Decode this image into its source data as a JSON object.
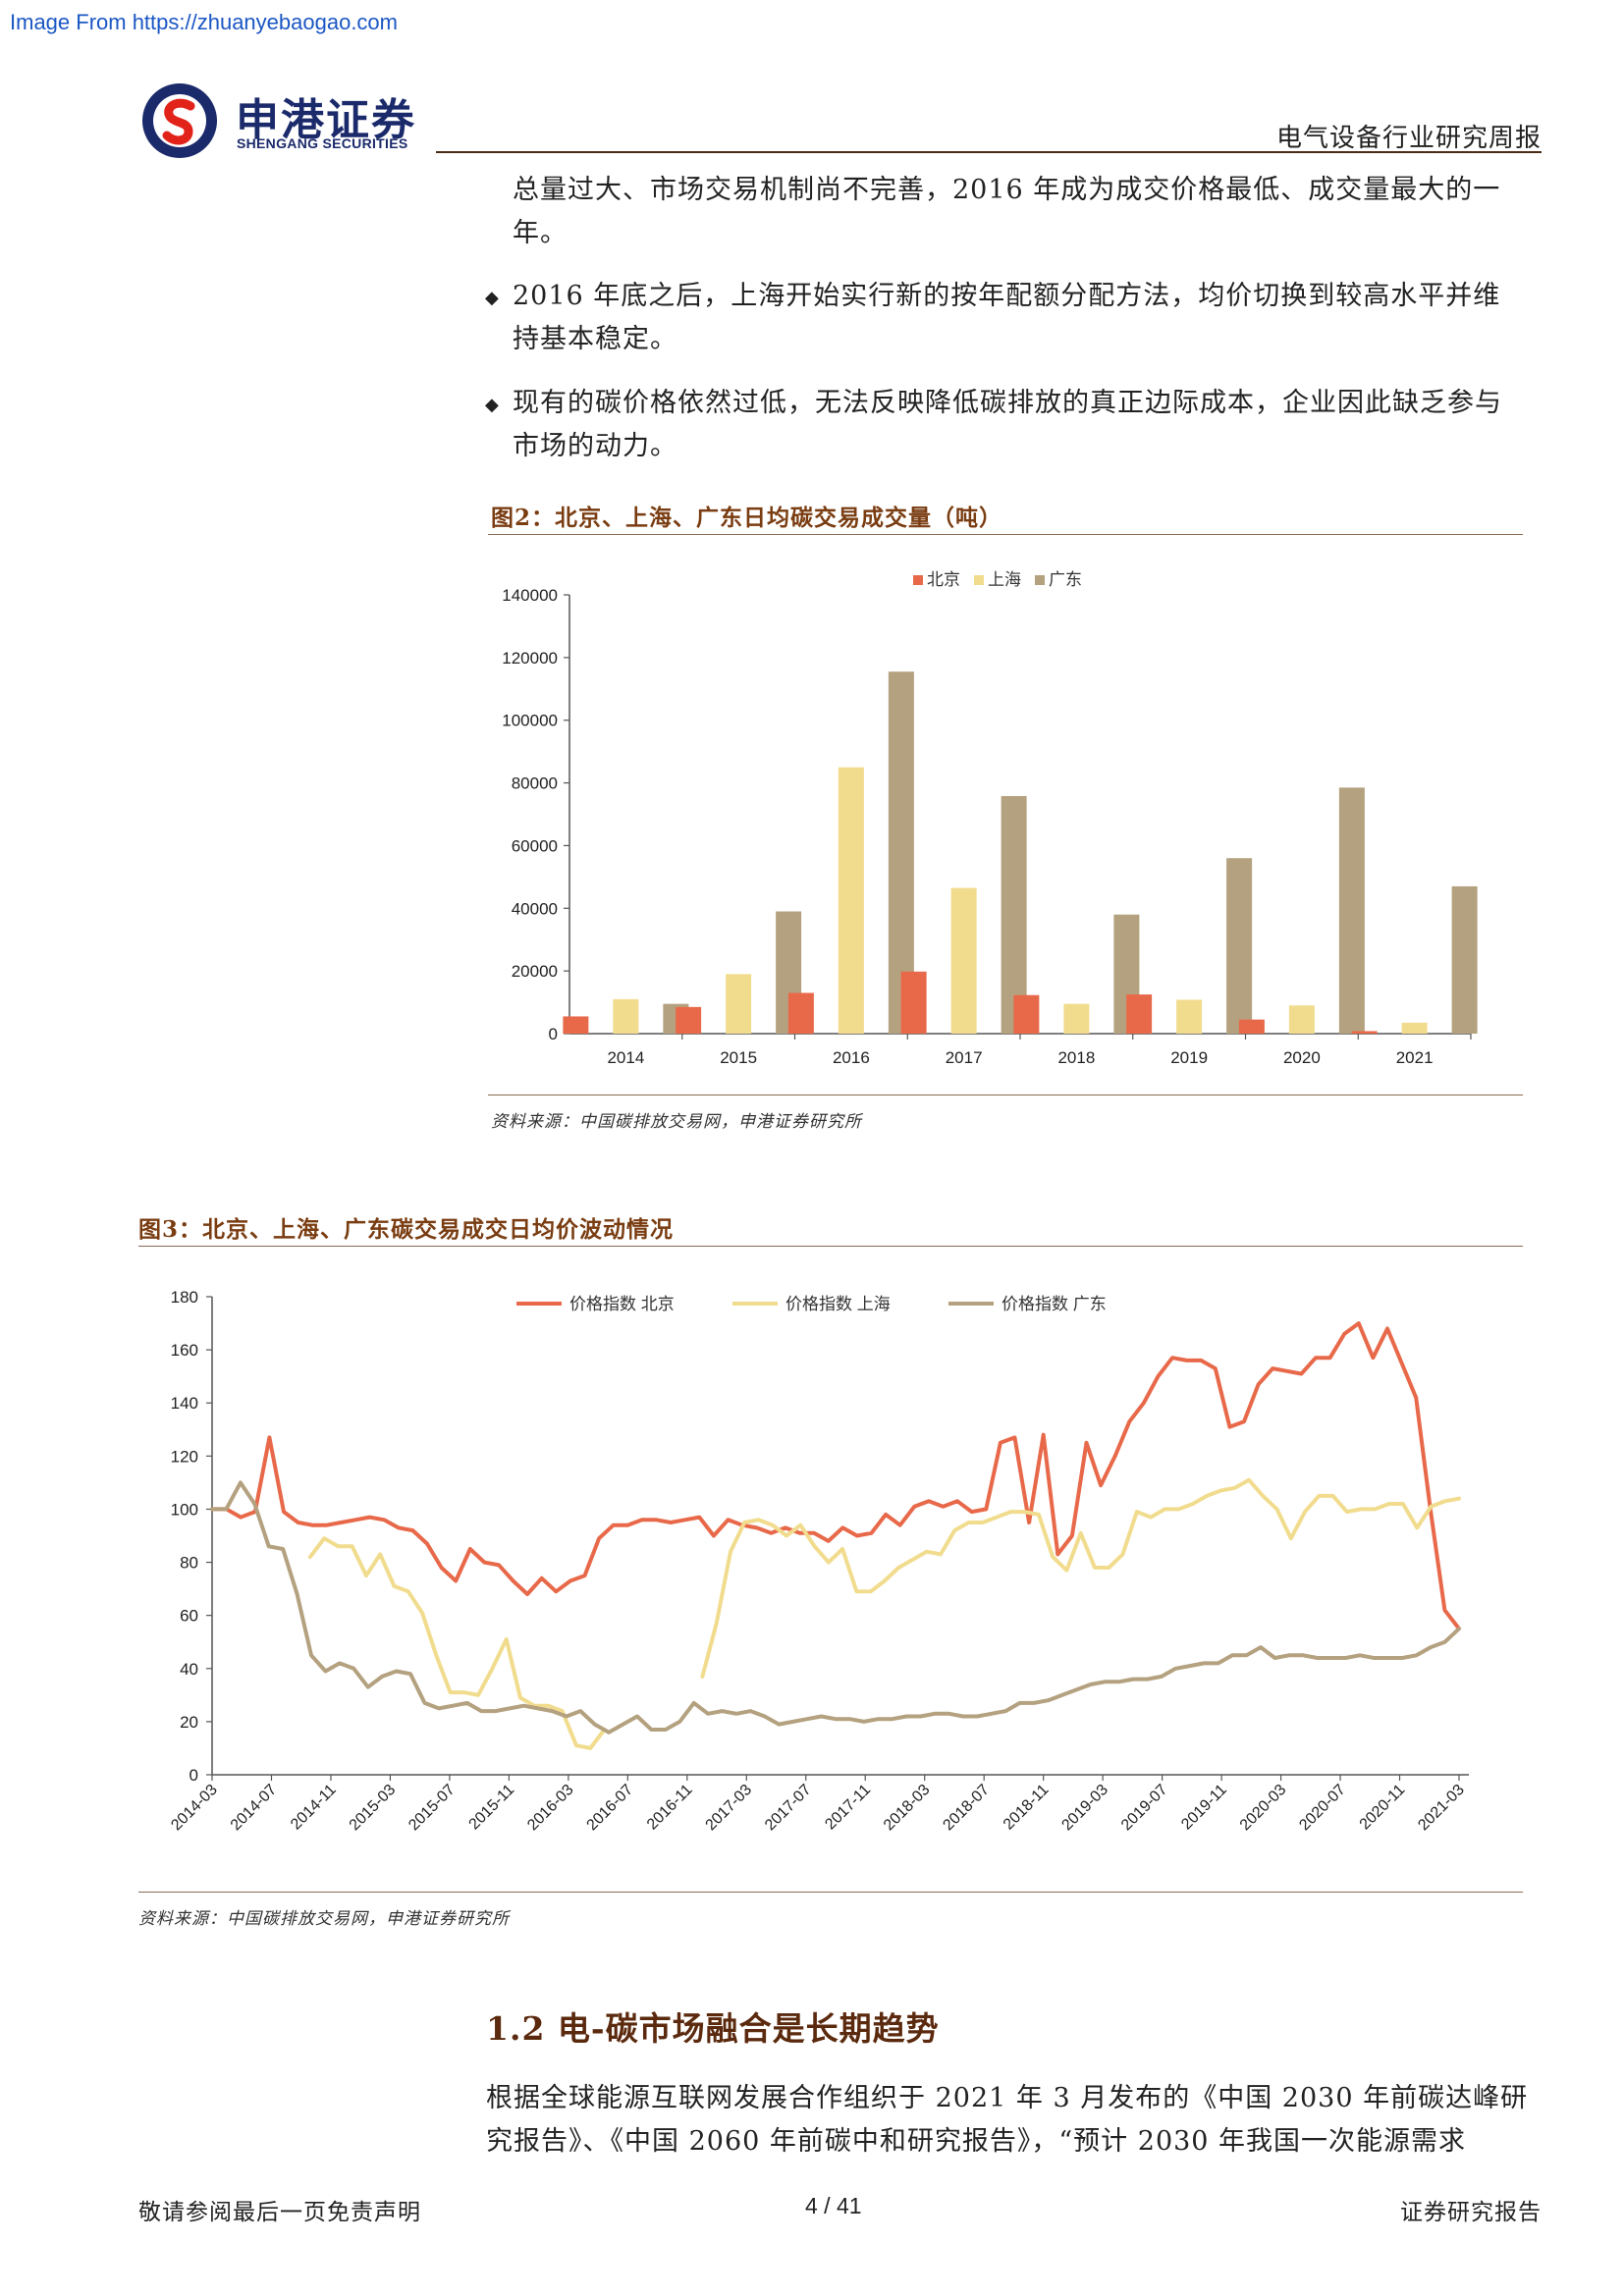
{
  "watermark": "Image From https://zhuanyebaogao.com",
  "logo": {
    "cn": "申港证券",
    "en": "SHENGANG SECURITIES"
  },
  "header": {
    "title": "电气设备行业研究周报"
  },
  "paragraphs": {
    "continuation_line1": "总量过大、市场交易机制尚不完善，2016 年成为成交价格最低、成交量最大的一",
    "continuation_line2": "年。",
    "bullet1_line1": "2016 年底之后，上海开始实行新的按年配额分配方法，均价切换到较高水平并维",
    "bullet1_line2": "持基本稳定。",
    "bullet2_line1": "现有的碳价格依然过低，无法反映降低碳排放的真正边际成本，企业因此缺乏参与",
    "bullet2_line2": "市场的动力。",
    "bullet_symbol": "◆"
  },
  "figure2": {
    "title": "图2：北京、上海、广东日均碳交易成交量（吨）",
    "source": "资料来源：中国碳排放交易网，申港证券研究所"
  },
  "figure3": {
    "title": "图3：北京、上海、广东碳交易成交日均价波动情况",
    "source": "资料来源：中国碳排放交易网，申港证券研究所"
  },
  "section": {
    "title": "1.2 电-碳市场融合是长期趋势",
    "body_line1": "根据全球能源互联网发展合作组织于 2021 年 3 月发布的《中国 2030 年前碳达峰研",
    "body_line2": "究报告》、《中国 2060 年前碳中和研究报告》，“预计 2030 年我国一次能源需求"
  },
  "footer": {
    "left": "敬请参阅最后一页免责声明",
    "page": "4 / 41",
    "right": "证券研究报告"
  },
  "chart_data": [
    {
      "type": "bar",
      "categories": [
        "2014",
        "2015",
        "2016",
        "2017",
        "2018",
        "2019",
        "2020",
        "2021"
      ],
      "series": [
        {
          "name": "北京",
          "color": "#e8694a",
          "values": [
            5500,
            8500,
            13000,
            19800,
            12300,
            12500,
            4500,
            800
          ]
        },
        {
          "name": "上海",
          "color": "#f1dc8e",
          "values": [
            11000,
            19000,
            85000,
            46500,
            9500,
            10800,
            9000,
            3500
          ]
        },
        {
          "name": "广东",
          "color": "#b4a17f",
          "values": [
            9500,
            39000,
            115500,
            75800,
            38000,
            56000,
            78500,
            47000
          ]
        }
      ],
      "ylim": [
        0,
        140000
      ],
      "yticks": [
        0,
        20000,
        40000,
        60000,
        80000,
        100000,
        120000,
        140000
      ],
      "legend": "top-center"
    },
    {
      "type": "line",
      "xticks": [
        "2014-03",
        "2014-07",
        "2014-11",
        "2015-03",
        "2015-07",
        "2015-11",
        "2016-03",
        "2016-07",
        "2016-11",
        "2017-03",
        "2017-07",
        "2017-11",
        "2018-03",
        "2018-07",
        "2018-11",
        "2019-03",
        "2019-07",
        "2019-11",
        "2020-03",
        "2020-07",
        "2020-11",
        "2021-03"
      ],
      "ylim": [
        0,
        180
      ],
      "yticks": [
        0,
        20,
        40,
        60,
        80,
        100,
        120,
        140,
        160,
        180
      ],
      "legend": "top-center",
      "series": [
        {
          "name": "价格指数 北京",
          "color": "#e8694a",
          "values": [
            100,
            100,
            97,
            99,
            127,
            99,
            95,
            94,
            94,
            95,
            96,
            97,
            96,
            93,
            92,
            87,
            78,
            73,
            85,
            80,
            79,
            73,
            68,
            74,
            69,
            73,
            75,
            89,
            94,
            94,
            96,
            96,
            95,
            96,
            97,
            90,
            96,
            94,
            93,
            91,
            93,
            91,
            91,
            88,
            93,
            90,
            91,
            98,
            94,
            101,
            103,
            101,
            103,
            99,
            100,
            125,
            127,
            95,
            128,
            83,
            90,
            125,
            109,
            120,
            133,
            140,
            150,
            157,
            156,
            156,
            153,
            131,
            133,
            147,
            153,
            152,
            151,
            157,
            157,
            166,
            170,
            157,
            168,
            155,
            142,
            100,
            62,
            55
          ]
        },
        {
          "name": "价格指数 上海",
          "color": "#f1dc8e",
          "values": [
            null,
            null,
            null,
            null,
            null,
            null,
            null,
            82,
            89,
            86,
            86,
            75,
            83,
            71,
            69,
            61,
            45,
            31,
            31,
            30,
            40,
            51,
            29,
            26,
            26,
            24,
            11,
            10,
            17,
            null,
            null,
            null,
            null,
            null,
            null,
            37,
            57,
            84,
            95,
            96,
            94,
            90,
            94,
            86,
            80,
            85,
            69,
            69,
            73,
            78,
            81,
            84,
            83,
            92,
            95,
            95,
            97,
            99,
            99,
            98,
            82,
            77,
            91,
            78,
            78,
            83,
            99,
            97,
            100,
            100,
            102,
            105,
            107,
            108,
            111,
            105,
            100,
            89,
            99,
            105,
            105,
            99,
            100,
            100,
            102,
            102,
            93,
            101,
            103,
            104
          ]
        },
        {
          "name": "价格指数 广东",
          "color": "#b4a17f",
          "values": [
            100,
            100,
            110,
            102,
            86,
            85,
            68,
            45,
            39,
            42,
            40,
            33,
            37,
            39,
            38,
            27,
            25,
            26,
            27,
            24,
            24,
            25,
            26,
            25,
            24,
            22,
            24,
            19,
            16,
            19,
            22,
            17,
            17,
            20,
            27,
            23,
            24,
            23,
            24,
            22,
            19,
            20,
            21,
            22,
            21,
            21,
            20,
            21,
            21,
            22,
            22,
            23,
            23,
            22,
            22,
            23,
            24,
            27,
            27,
            28,
            30,
            32,
            34,
            35,
            35,
            36,
            36,
            37,
            40,
            41,
            42,
            42,
            45,
            45,
            48,
            44,
            45,
            45,
            44,
            44,
            44,
            45,
            44,
            44,
            44,
            45,
            48,
            50,
            55
          ]
        }
      ]
    }
  ]
}
